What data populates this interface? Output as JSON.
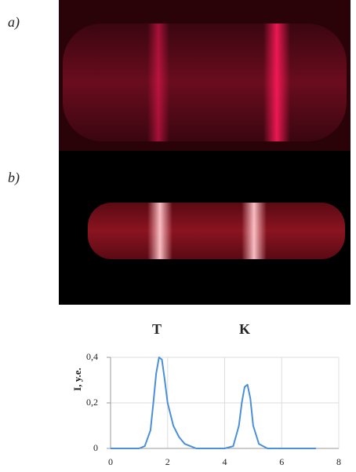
{
  "panels": {
    "a": "a)",
    "b": "b)"
  },
  "chart_data": {
    "type": "line",
    "annotations": [
      "T",
      "K"
    ],
    "y_label": "I, y.e.",
    "xlim": [
      0,
      8
    ],
    "xticks": [
      0,
      2,
      4,
      6,
      8
    ],
    "ylim": [
      0,
      0.4
    ],
    "yticks": [
      0,
      {
        "value": 0.2,
        "label": "0,2"
      },
      {
        "value": 0.4,
        "label": "0,4"
      }
    ],
    "grid": true,
    "x": [
      0,
      0.5,
      1,
      1.2,
      1.4,
      1.5,
      1.6,
      1.7,
      1.8,
      1.9,
      2.0,
      2.2,
      2.4,
      2.6,
      2.8,
      3,
      3.5,
      4,
      4.3,
      4.5,
      4.6,
      4.7,
      4.8,
      4.9,
      5.0,
      5.2,
      5.5,
      6,
      7,
      7.2
    ],
    "series": [
      {
        "color": "#4a90d9",
        "values": [
          0,
          0,
          0,
          0.01,
          0.08,
          0.2,
          0.33,
          0.4,
          0.39,
          0.3,
          0.2,
          0.1,
          0.05,
          0.02,
          0.01,
          0,
          0,
          0,
          0.01,
          0.1,
          0.2,
          0.27,
          0.28,
          0.22,
          0.1,
          0.02,
          0,
          0,
          0,
          0
        ]
      }
    ]
  }
}
